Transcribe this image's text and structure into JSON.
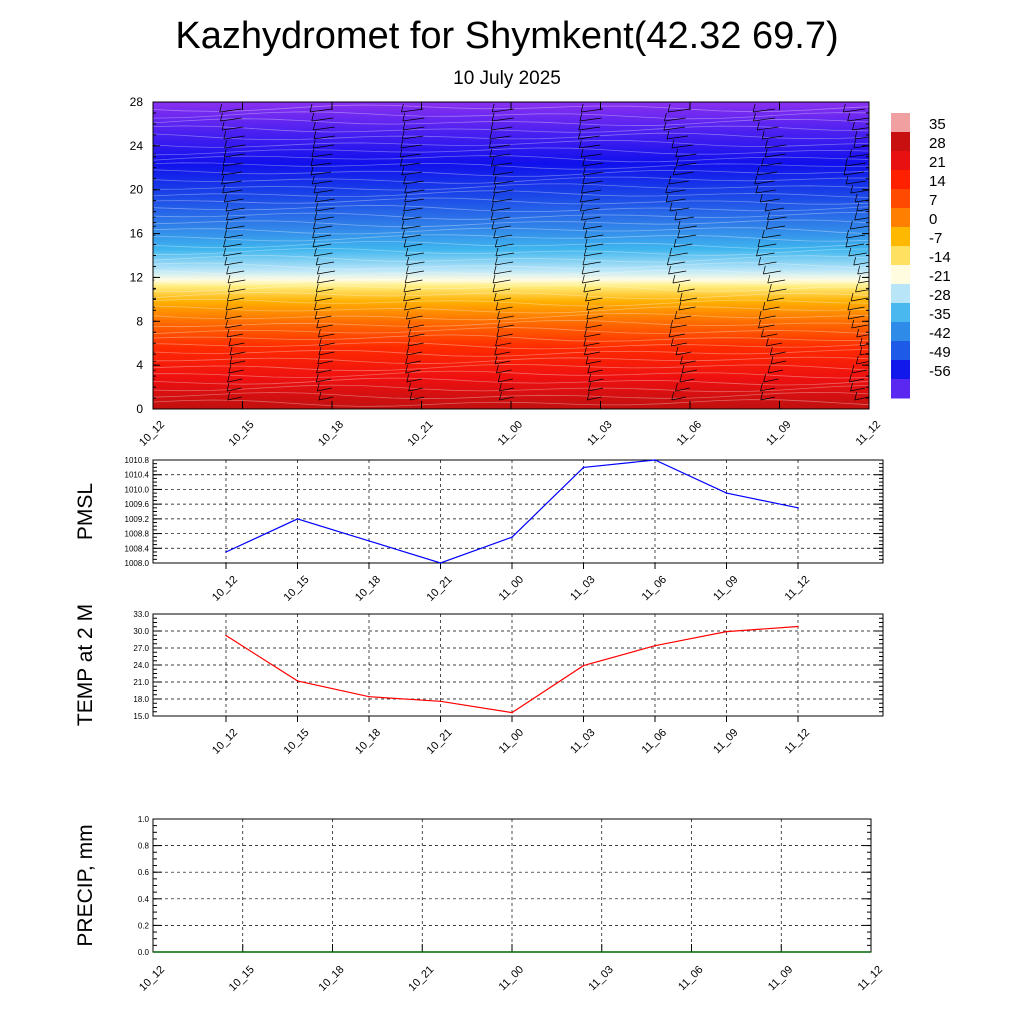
{
  "header": {
    "title": "Kazhydromet for Shymkent(42.32 69.7)",
    "date": "10 July 2025"
  },
  "chart_data": [
    {
      "type": "heatmap",
      "name": "cross-section",
      "ylim": [
        0,
        28
      ],
      "yticks": [
        "0",
        "4",
        "8",
        "12",
        "16",
        "20",
        "24",
        "28"
      ],
      "xticks": [
        "10_12",
        "10_15",
        "10_18",
        "10_21",
        "11_00",
        "11_03",
        "11_06",
        "11_09",
        "11_12"
      ],
      "colorbar": {
        "labels": [
          "35",
          "28",
          "21",
          "14",
          "7",
          "0",
          "-7",
          "-14",
          "-21",
          "-28",
          "-35",
          "-42",
          "-49",
          "-56"
        ]
      }
    },
    {
      "type": "line",
      "name": "pmsl",
      "ylabel": "PMSL",
      "categories": [
        "10_12",
        "10_15",
        "10_18",
        "10_21",
        "11_00",
        "11_03",
        "11_06",
        "11_09",
        "11_12"
      ],
      "values": [
        1008.3,
        1009.2,
        1008.6,
        1008.0,
        1008.7,
        1010.6,
        1010.8,
        1009.9,
        1009.5
      ],
      "ylim": [
        1008.0,
        1010.8
      ],
      "yticks": [
        "1008.0",
        "1008.4",
        "1008.8",
        "1009.2",
        "1009.6",
        "1010.0",
        "1010.4",
        "1010.8"
      ],
      "color": "#0000ff"
    },
    {
      "type": "line",
      "name": "temp",
      "ylabel": "TEMP at 2 M",
      "categories": [
        "10_12",
        "10_15",
        "10_18",
        "10_21",
        "11_00",
        "11_03",
        "11_06",
        "11_09",
        "11_12"
      ],
      "values": [
        29.2,
        21.2,
        18.4,
        17.6,
        15.6,
        23.9,
        27.4,
        29.9,
        30.8
      ],
      "ylim": [
        15.0,
        33.0
      ],
      "yticks": [
        "15.0",
        "18.0",
        "21.0",
        "24.0",
        "27.0",
        "30.0",
        "33.0"
      ],
      "color": "#ff0000"
    },
    {
      "type": "line",
      "name": "precip",
      "ylabel": "PRECIP, mm",
      "categories": [
        "10_12",
        "10_15",
        "10_18",
        "10_21",
        "11_00",
        "11_03",
        "11_06",
        "11_09",
        "11_12"
      ],
      "values": [
        0,
        0,
        0,
        0,
        0,
        0,
        0,
        0,
        0
      ],
      "ylim": [
        0.0,
        1.0
      ],
      "yticks": [
        "0.0",
        "0.2",
        "0.4",
        "0.6",
        "0.8",
        "1.0"
      ],
      "color": "#006400"
    }
  ]
}
